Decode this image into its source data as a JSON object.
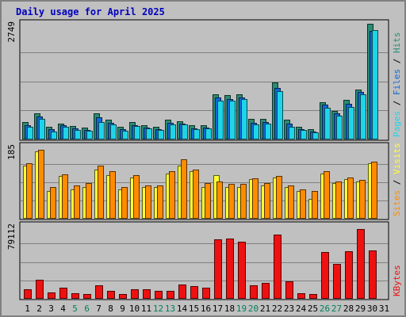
{
  "chart_data": {
    "type": "bar",
    "title": "Daily usage for April 2025",
    "categories": [
      "1",
      "2",
      "3",
      "4",
      "5",
      "6",
      "7",
      "8",
      "9",
      "10",
      "11",
      "12",
      "13",
      "14",
      "15",
      "16",
      "17",
      "18",
      "19",
      "20",
      "21",
      "22",
      "23",
      "24",
      "25",
      "26",
      "27",
      "28",
      "29",
      "30",
      "31"
    ],
    "weekend_days": [
      "5",
      "6",
      "12",
      "13",
      "19",
      "20",
      "26",
      "27"
    ],
    "panels": [
      {
        "id": "top",
        "max_label": "2749",
        "ylim": [
          0,
          2749
        ],
        "right_label": [
          "Pages",
          "Files",
          "Hits"
        ],
        "series": [
          {
            "name": "Hits",
            "color": "#2b8b73",
            "values": [
              420,
              620,
              300,
              380,
              310,
              280,
              620,
              470,
              300,
              410,
              330,
              300,
              470,
              430,
              330,
              330,
              1060,
              1040,
              1060,
              480,
              480,
              1340,
              470,
              290,
              240,
              880,
              680,
              930,
              1180,
              2730,
              0
            ]
          },
          {
            "name": "Files",
            "color": "#0f6ad6",
            "values": [
              330,
              540,
              240,
              330,
              260,
              230,
              520,
              400,
              250,
              340,
              280,
              250,
              390,
              370,
              270,
              280,
              990,
              960,
              1000,
              400,
              410,
              1220,
              380,
              240,
              190,
              820,
              610,
              850,
              1130,
              2560,
              0
            ]
          },
          {
            "name": "Pages",
            "color": "#1fd4e8",
            "values": [
              300,
              480,
              190,
              300,
              230,
              210,
              420,
              350,
              210,
              320,
              270,
              220,
              360,
              350,
              240,
              260,
              920,
              910,
              950,
              350,
              370,
              1150,
              300,
              220,
              160,
              750,
              570,
              760,
              1060,
              2580,
              0
            ]
          }
        ]
      },
      {
        "id": "middle",
        "max_label": "185",
        "ylim": [
          0,
          185
        ],
        "right_label": [
          "Sites",
          "Visits"
        ],
        "series": [
          {
            "name": "Visits",
            "color": "#ffff33",
            "values": [
              135,
              170,
              70,
              108,
              75,
              80,
              125,
              110,
              75,
              105,
              80,
              80,
              115,
              135,
              120,
              80,
              110,
              80,
              80,
              100,
              85,
              105,
              80,
              70,
              50,
              115,
              90,
              100,
              95,
              140,
              0
            ]
          },
          {
            "name": "Sites",
            "color": "#ff8c00",
            "values": [
              140,
              175,
              80,
              112,
              85,
              90,
              135,
              120,
              80,
              110,
              85,
              85,
              120,
              150,
              125,
              90,
              95,
              88,
              88,
              102,
              90,
              108,
              85,
              75,
              70,
              120,
              95,
              105,
              98,
              145,
              0
            ]
          }
        ]
      },
      {
        "id": "bottom",
        "max_label": "79112",
        "ylim": [
          0,
          79112
        ],
        "right_label": [
          "KBytes"
        ],
        "series": [
          {
            "name": "KBytes",
            "color": "#ee1111",
            "values": [
              10500,
              20000,
              6800,
              11500,
              6200,
              5400,
              14200,
              8800,
              5100,
              10100,
              10300,
              8100,
              8400,
              15600,
              13300,
              11800,
              63700,
              64400,
              61500,
              14100,
              17300,
              68800,
              18700,
              6100,
              5500,
              50500,
              37200,
              51000,
              74800,
              52200,
              0
            ]
          }
        ]
      }
    ],
    "colors": {
      "background": "#c0c0c0",
      "panel_border": "#000000",
      "weekday_label": "#000000",
      "weekend_label": "#00805a",
      "title": "#0000c0",
      "grid": "#808080"
    },
    "grid": true
  }
}
